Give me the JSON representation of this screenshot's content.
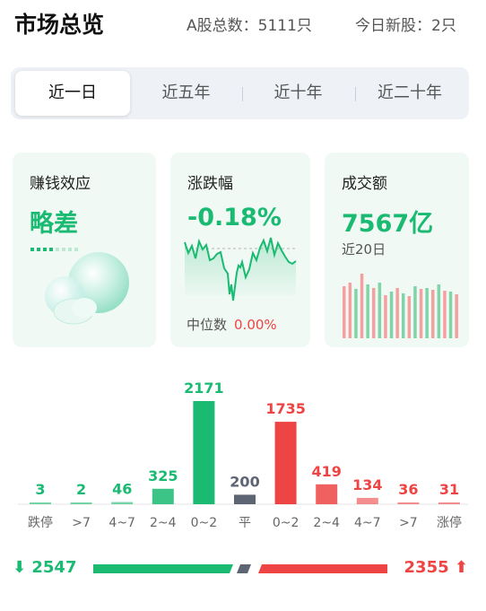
{
  "header": {
    "title": "市场总览",
    "a_share_total": "A股总数：5111只",
    "new_today": "今日新股：2只"
  },
  "tabs": [
    {
      "label": "近一日",
      "active": true
    },
    {
      "label": "近五年",
      "active": false
    },
    {
      "label": "近十年",
      "active": false
    },
    {
      "label": "近二十年",
      "active": false
    }
  ],
  "cards": {
    "money_effect": {
      "title": "赚钱效应",
      "value": "略差"
    },
    "change": {
      "title": "涨跌幅",
      "value": "-0.18%",
      "median_label": "中位数",
      "median_value": "0.00%"
    },
    "turnover": {
      "title": "成交额",
      "value": "7567亿",
      "sub": "近20日"
    }
  },
  "colors": {
    "up": "#ef4444",
    "down": "#1aba72",
    "flat": "#5d6474"
  },
  "chart_data": {
    "type": "bar",
    "categories": [
      "跌停",
      ">7",
      "4~7",
      "2~4",
      "0~2",
      "平",
      "0~2",
      "2~4",
      "4~7",
      ">7",
      "涨停"
    ],
    "values": [
      3,
      2,
      46,
      325,
      2171,
      200,
      1735,
      419,
      134,
      36,
      31
    ],
    "kinds": [
      "down",
      "down",
      "down",
      "down",
      "down",
      "flat",
      "up",
      "up",
      "up",
      "up",
      "up"
    ]
  },
  "summary": {
    "down_count": "2547",
    "up_count": "2355"
  }
}
